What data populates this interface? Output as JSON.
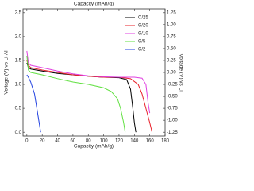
{
  "chart_data": {
    "type": "line",
    "title": "Capacity (mAh/g)",
    "x_label": "Capacity (mAh/g)",
    "y_label": "Voltage (V) vs Li-Al",
    "y2_label": "Voltage (V) vs Li",
    "xlim": [
      -5,
      180
    ],
    "xticks": [
      0,
      20,
      40,
      60,
      80,
      100,
      120,
      140,
      160,
      180
    ],
    "ylim": [
      -0.08,
      2.58
    ],
    "yticks": [
      {
        "value": 0,
        "label": "0.0"
      },
      0.5,
      {
        "value": 1,
        "label": "1.0"
      },
      1.5,
      {
        "value": 2,
        "label": "2.0"
      },
      2.5
    ],
    "y2lim": [
      -1.33,
      1.33
    ],
    "y2ticks": [
      -1.25,
      {
        "value": -1,
        "label": "-1.00"
      },
      -0.75,
      {
        "value": -0.5,
        "label": "-0.50"
      },
      -0.25,
      {
        "value": 0,
        "label": "0.00"
      },
      0.25,
      {
        "value": 0.5,
        "label": "0.50"
      },
      0.75,
      {
        "value": 1,
        "label": "1.00"
      },
      1.25
    ],
    "legend": "upper-right",
    "series": [
      {
        "name": "C/25",
        "color": "#000000",
        "x": [
          0,
          2,
          5,
          20,
          40,
          60,
          80,
          100,
          120,
          130,
          135,
          138,
          140,
          142
        ],
        "values": [
          1.45,
          1.35,
          1.32,
          1.28,
          1.23,
          1.2,
          1.17,
          1.15,
          1.14,
          1.1,
          0.9,
          0.5,
          0.2,
          0
        ]
      },
      {
        "name": "C/20",
        "color": "#e8202a",
        "x": [
          0,
          2,
          5,
          20,
          40,
          60,
          80,
          100,
          120,
          135,
          145,
          150,
          155,
          160,
          163
        ],
        "values": [
          1.5,
          1.4,
          1.35,
          1.3,
          1.25,
          1.2,
          1.17,
          1.15,
          1.15,
          1.12,
          1.0,
          0.8,
          0.5,
          0.2,
          0
        ]
      },
      {
        "name": "C/10",
        "color": "#e040e0",
        "x": [
          0,
          2,
          5,
          20,
          40,
          60,
          80,
          100,
          120,
          140,
          150,
          155,
          158,
          160
        ],
        "values": [
          1.7,
          1.45,
          1.4,
          1.35,
          1.28,
          1.22,
          1.18,
          1.16,
          1.15,
          1.15,
          1.13,
          1.0,
          0.6,
          0.4
        ]
      },
      {
        "name": "C/5",
        "color": "#60e040",
        "x": [
          0,
          2,
          5,
          20,
          40,
          60,
          80,
          100,
          110,
          118,
          122,
          126,
          128
        ],
        "values": [
          1.6,
          1.3,
          1.25,
          1.2,
          1.12,
          1.05,
          1.0,
          0.93,
          0.85,
          0.7,
          0.5,
          0.2,
          0
        ]
      },
      {
        "name": "C/2",
        "color": "#2040e0",
        "x": [
          0,
          2,
          5,
          10,
          15,
          18
        ],
        "values": [
          1.2,
          1.15,
          1.05,
          0.8,
          0.3,
          0
        ]
      }
    ]
  }
}
